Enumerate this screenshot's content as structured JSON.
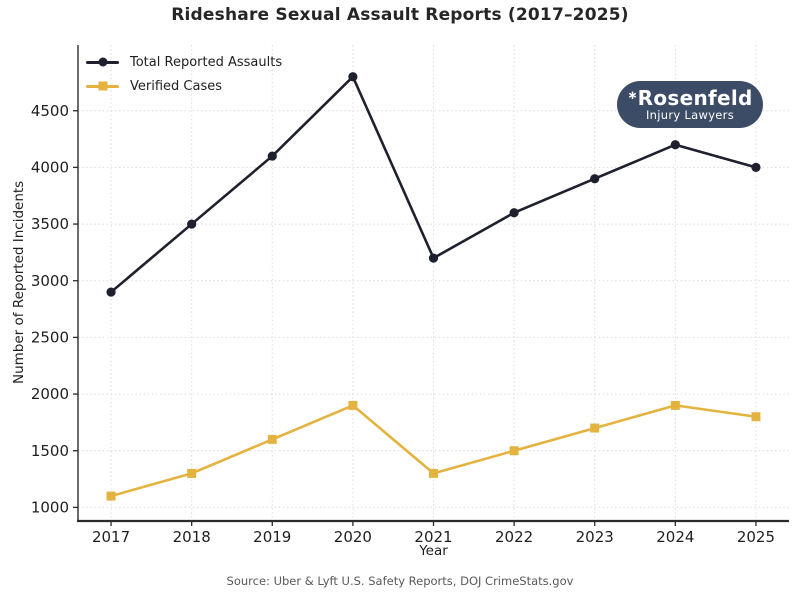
{
  "title": "Rideshare Sexual Assault Reports (2017–2025)",
  "source": "Source: Uber & Lyft U.S. Safety Reports, DOJ CrimeStats.gov",
  "logo": {
    "name": "Rosenfeld",
    "tagline": "Injury Lawyers",
    "star_glyph": "∗",
    "bg_color": "#3c4b66",
    "text_color": "#ffffff"
  },
  "colors": {
    "total_series": "#1e202e",
    "verified_series": "#e4b33f",
    "grid": "#dcdcdc",
    "spine": "#2b2b2b",
    "tick_text": "#1f1f1f",
    "muted_text": "#595959"
  },
  "chart_data": {
    "type": "line",
    "title": "Rideshare Sexual Assault Reports (2017–2025)",
    "xlabel": "Year",
    "ylabel": "Number of Reported Incidents",
    "x": [
      2017,
      2018,
      2019,
      2020,
      2021,
      2022,
      2023,
      2024,
      2025
    ],
    "series": [
      {
        "name": "Total Reported Assaults",
        "color": "#1e202e",
        "marker": "circle",
        "values": [
          2900,
          3500,
          4100,
          4800,
          3200,
          3600,
          3900,
          4200,
          4000
        ]
      },
      {
        "name": "Verified Cases",
        "color": "#e4b33f",
        "marker": "square",
        "values": [
          1100,
          1300,
          1600,
          1900,
          1300,
          1500,
          1700,
          1900,
          1800
        ]
      }
    ],
    "yticks": [
      1000,
      1500,
      2000,
      2500,
      3000,
      3500,
      4000,
      4500
    ],
    "xlim": [
      2016.59,
      2025.41
    ],
    "ylim": [
      880,
      5080
    ],
    "grid": true,
    "grid_style": "dotted",
    "legend_position": "upper left"
  }
}
